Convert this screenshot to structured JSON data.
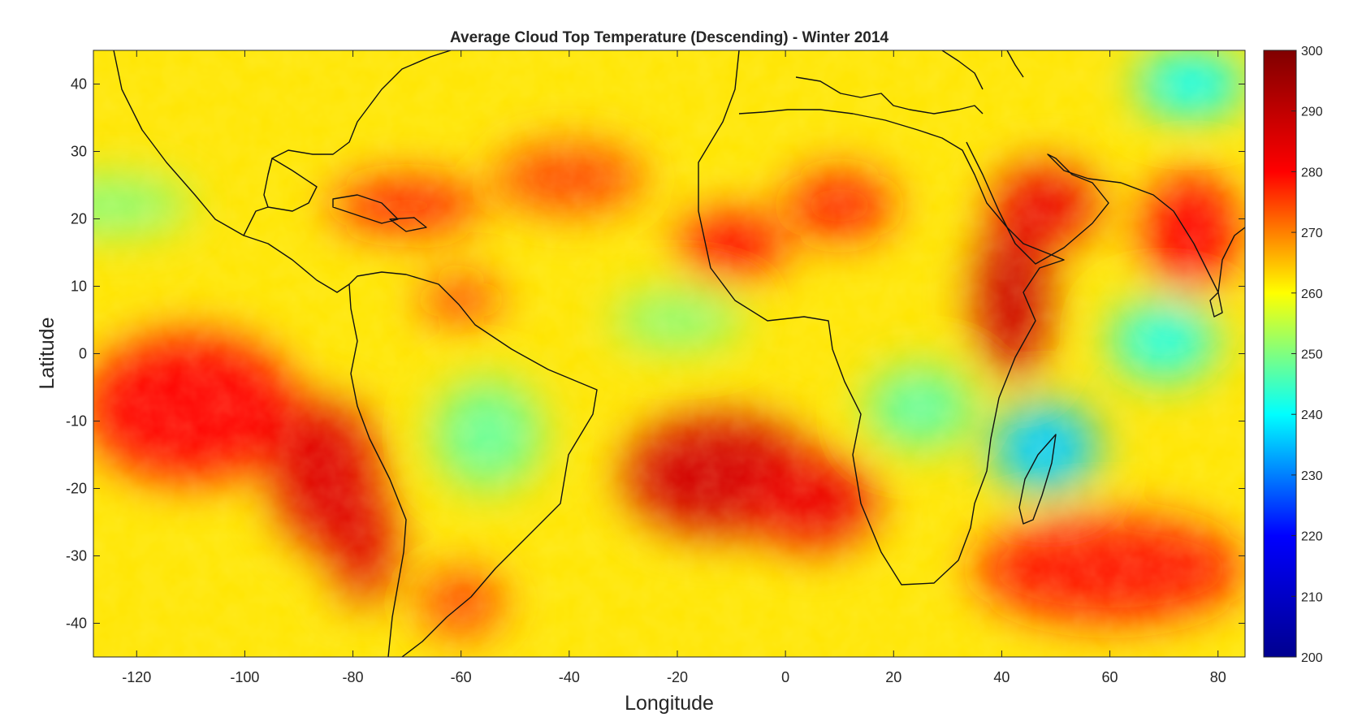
{
  "chart_data": {
    "type": "heatmap",
    "title": "Average Cloud Top Temperature (Descending) - Winter 2014",
    "xlabel": "Longitude",
    "ylabel": "Latitude",
    "xlim": [
      -128,
      85
    ],
    "ylim": [
      -45,
      45
    ],
    "x_ticks": [
      -120,
      -100,
      -80,
      -60,
      -40,
      -20,
      0,
      20,
      40,
      60,
      80
    ],
    "y_ticks": [
      40,
      30,
      20,
      10,
      0,
      -10,
      -20,
      -30,
      -40
    ],
    "colorbar": {
      "min": 200,
      "max": 300,
      "ticks": [
        300,
        290,
        280,
        270,
        260,
        250,
        240,
        230,
        220,
        210,
        200
      ],
      "colormap": "jet",
      "colors": [
        "#00008f",
        "#0000ff",
        "#00ffff",
        "#ffff00",
        "#ff0000",
        "#800000"
      ]
    },
    "grid": false,
    "background_value": 262,
    "regions": [
      {
        "lon": -110,
        "lat": -8,
        "rx": 20,
        "ry": 11,
        "value": 280
      },
      {
        "lon": -85,
        "lat": -18,
        "rx": 10,
        "ry": 11,
        "value": 285
      },
      {
        "lon": -78,
        "lat": -28,
        "rx": 6,
        "ry": 9,
        "value": 285
      },
      {
        "lon": -12,
        "lat": -18,
        "rx": 18,
        "ry": 9,
        "value": 287
      },
      {
        "lon": 5,
        "lat": -22,
        "rx": 12,
        "ry": 7,
        "value": 283
      },
      {
        "lon": 42,
        "lat": 8,
        "rx": 7,
        "ry": 12,
        "value": 288
      },
      {
        "lon": 48,
        "lat": 22,
        "rx": 10,
        "ry": 6,
        "value": 283
      },
      {
        "lon": 75,
        "lat": 18,
        "rx": 9,
        "ry": 9,
        "value": 280
      },
      {
        "lon": -70,
        "lat": 22,
        "rx": 14,
        "ry": 4,
        "value": 278
      },
      {
        "lon": -40,
        "lat": 26,
        "rx": 14,
        "ry": 5,
        "value": 275
      },
      {
        "lon": -60,
        "lat": 8,
        "rx": 7,
        "ry": 3,
        "value": 278
      },
      {
        "lon": -10,
        "lat": 16,
        "rx": 10,
        "ry": 5,
        "value": 280
      },
      {
        "lon": 10,
        "lat": 22,
        "rx": 10,
        "ry": 5,
        "value": 278
      },
      {
        "lon": -60,
        "lat": -37,
        "rx": 8,
        "ry": 5,
        "value": 275
      },
      {
        "lon": 60,
        "lat": -32,
        "rx": 25,
        "ry": 8,
        "value": 278
      },
      {
        "lon": -55,
        "lat": -12,
        "rx": 10,
        "ry": 8,
        "value": 248
      },
      {
        "lon": 25,
        "lat": -8,
        "rx": 10,
        "ry": 6,
        "value": 247
      },
      {
        "lon": 48,
        "lat": -14,
        "rx": 10,
        "ry": 7,
        "value": 236
      },
      {
        "lon": 70,
        "lat": 2,
        "rx": 10,
        "ry": 6,
        "value": 242
      },
      {
        "lon": 75,
        "lat": 40,
        "rx": 10,
        "ry": 5,
        "value": 240
      },
      {
        "lon": -125,
        "lat": 22,
        "rx": 15,
        "ry": 4,
        "value": 250
      },
      {
        "lon": -20,
        "lat": 5,
        "rx": 12,
        "ry": 4,
        "value": 250
      }
    ]
  }
}
